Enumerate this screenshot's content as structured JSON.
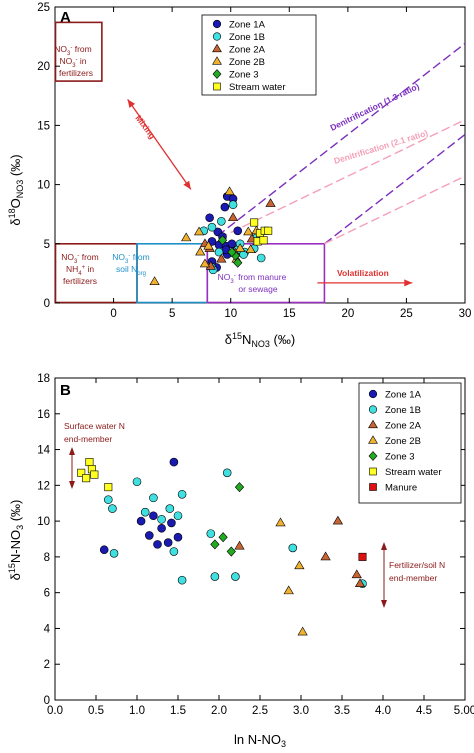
{
  "colors": {
    "zone_1a": "#1a1ab0",
    "zone_1b": "#40e0e0",
    "zone_2a": "#c86432",
    "zone_2b": "#f0b030",
    "zone_3": "#22aa22",
    "stream": "#ffff20",
    "manure": "#dd1111",
    "fert_box": "#8b1a1a",
    "soil_box": "#1e90c8",
    "manure_box": "#9b30c0",
    "denit13": "#7b2fbe",
    "denit21": "#f4a0b8",
    "arrow": "#e03030",
    "annot_b": "#8b1a1a"
  },
  "chart_data": [
    {
      "type": "scatter",
      "panel": "A",
      "ylabel_main": "δ",
      "ylabel_sup": "18",
      "ylabel_tail": "O",
      "ylabel_sub": "NO3",
      "ylabel_unit": " (‰)",
      "xlabel_main": "δ",
      "xlabel_sup": "15",
      "xlabel_tail": "N",
      "xlabel_sub": "NO3",
      "xlabel_unit": " (‰)",
      "xlim": [
        -5,
        30
      ],
      "ylim": [
        0,
        25
      ],
      "xticks": [
        0,
        5,
        10,
        15,
        20,
        25,
        30
      ],
      "xtick_labels": [
        "0",
        "5",
        "10",
        "15",
        "20",
        "25",
        "30"
      ],
      "yticks": [
        0,
        5,
        10,
        15,
        20,
        25
      ],
      "ytick_labels": [
        "0",
        "5",
        "10",
        "15",
        "20",
        "25"
      ],
      "legend": [
        "Zone 1A",
        "Zone 1B",
        "Zone 2A",
        "Zone 2B",
        "Zone 3",
        "Stream water"
      ],
      "series": [
        {
          "name": "Zone 1A",
          "marker": "circle",
          "color_key": "zone_1a",
          "points": [
            [
              9.7,
              9.0
            ],
            [
              10.2,
              8.8
            ],
            [
              9.5,
              8.1
            ],
            [
              8.2,
              7.2
            ],
            [
              8.4,
              5.2
            ],
            [
              9.0,
              4.9
            ],
            [
              9.6,
              4.8
            ],
            [
              9.7,
              4.1
            ],
            [
              10.3,
              4.4
            ],
            [
              8.9,
              6.0
            ],
            [
              9.3,
              5.6
            ],
            [
              8.8,
              3.0
            ],
            [
              9.6,
              4.5
            ],
            [
              10.6,
              6.1
            ],
            [
              10.1,
              5.0
            ],
            [
              8.4,
              3.5
            ]
          ]
        },
        {
          "name": "Zone 1B",
          "marker": "circle",
          "color_key": "zone_1b",
          "points": [
            [
              7.7,
              6.1
            ],
            [
              8.4,
              6.4
            ],
            [
              9.2,
              6.9
            ],
            [
              10.2,
              8.3
            ],
            [
              10.6,
              4.5
            ],
            [
              11.2,
              4.3
            ],
            [
              10.8,
              5.0
            ],
            [
              8.4,
              3.0
            ],
            [
              8.5,
              2.8
            ],
            [
              9.0,
              4.3
            ],
            [
              12.2,
              5.5
            ],
            [
              12.6,
              3.8
            ],
            [
              12.0,
              4.6
            ],
            [
              11.1,
              4.1
            ]
          ]
        },
        {
          "name": "Zone 2A",
          "marker": "triangle",
          "color_key": "zone_2a",
          "points": [
            [
              10.2,
              7.2
            ],
            [
              13.4,
              8.4
            ],
            [
              8.2,
              4.6
            ],
            [
              9.2,
              3.7
            ],
            [
              10.4,
              4.2
            ],
            [
              11.8,
              5.4
            ],
            [
              7.8,
              5.0
            ],
            [
              8.3,
              3.1
            ]
          ]
        },
        {
          "name": "Zone 2B",
          "marker": "triangle",
          "color_key": "zone_2b",
          "points": [
            [
              9.9,
              9.4
            ],
            [
              11.5,
              6.0
            ],
            [
              7.3,
              6.0
            ],
            [
              6.2,
              5.5
            ],
            [
              7.4,
              4.3
            ],
            [
              8.1,
              4.8
            ],
            [
              10.8,
              4.6
            ],
            [
              10.5,
              3.7
            ],
            [
              12.2,
              6.1
            ],
            [
              3.5,
              1.8
            ],
            [
              7.8,
              3.3
            ],
            [
              11.7,
              4.5
            ]
          ]
        },
        {
          "name": "Zone 3",
          "marker": "diamond",
          "color_key": "zone_3",
          "points": [
            [
              9.3,
              5.3
            ],
            [
              10.4,
              4.0
            ],
            [
              10.6,
              3.4
            ],
            [
              10.1,
              4.3
            ]
          ]
        },
        {
          "name": "Stream water",
          "marker": "square",
          "color_key": "stream",
          "points": [
            [
              12.0,
              6.8
            ],
            [
              12.5,
              5.9
            ],
            [
              12.9,
              6.1
            ],
            [
              12.3,
              5.2
            ],
            [
              13.2,
              6.1
            ],
            [
              12.8,
              5.3
            ]
          ]
        }
      ],
      "boxes": [
        {
          "x": [
            -5,
            -1
          ],
          "y": [
            18.7,
            23.7
          ],
          "color_key": "fert_box",
          "line1": "NO3- from",
          "line2": "NO3- in",
          "line3": "fertilizers"
        },
        {
          "x": [
            -5,
            2
          ],
          "y": [
            0,
            5
          ],
          "color_key": "fert_box",
          "line1": "NO3- from",
          "line2": "NH4+ in",
          "line3": "fertilizers"
        },
        {
          "x": [
            2,
            8
          ],
          "y": [
            0,
            5
          ],
          "color_key": "soil_box",
          "line1": "NO3- from",
          "line2": "soil N",
          "line3": "org"
        },
        {
          "x": [
            8,
            18
          ],
          "y": [
            0,
            5
          ],
          "color_key": "manure_box",
          "line1": "NO3- from manure",
          "line2": "or sewage",
          "line3": ""
        }
      ],
      "annotations": {
        "mixing": "Mixing",
        "volatilization": "Volatilization",
        "denit13": "Denitrification (1.3 ratio)",
        "denit21": "Denitrification (2.1 ratio)"
      }
    },
    {
      "type": "scatter",
      "panel": "B",
      "ylabel_main": "δ",
      "ylabel_sup": "15",
      "ylabel_tail": "N-NO",
      "ylabel_sub": "3",
      "ylabel_unit": " (‰)",
      "xlabel_main": "ln N-NO",
      "xlabel_sub": "3",
      "xlim": [
        0,
        5
      ],
      "ylim": [
        0,
        18
      ],
      "xticks": [
        0,
        0.5,
        1.0,
        1.5,
        2.0,
        2.5,
        3.0,
        3.5,
        4.0,
        4.5,
        5.0
      ],
      "xtick_labels": [
        "0.0",
        "0.5",
        "1.0",
        "1.5",
        "2.0",
        "2.5",
        "3.0",
        "3.5",
        "4.0",
        "4.5",
        "5.00"
      ],
      "yticks": [
        0,
        2,
        4,
        6,
        8,
        10,
        12,
        14,
        16,
        18
      ],
      "ytick_labels": [
        "0",
        "2",
        "4",
        "6",
        "8",
        "10",
        "12",
        "14",
        "16",
        "18"
      ],
      "legend": [
        "Zone 1A",
        "Zone 1B",
        "Zone 2A",
        "Zone 2B",
        "Zone 3",
        "Stream water",
        "Manure"
      ],
      "series": [
        {
          "name": "Zone 1A",
          "marker": "circle",
          "color_key": "zone_1a",
          "points": [
            [
              0.6,
              8.4
            ],
            [
              1.05,
              10.0
            ],
            [
              1.15,
              9.2
            ],
            [
              1.2,
              10.3
            ],
            [
              1.3,
              9.6
            ],
            [
              1.38,
              8.8
            ],
            [
              1.45,
              13.3
            ],
            [
              1.5,
              9.1
            ],
            [
              1.42,
              9.9
            ],
            [
              1.25,
              8.7
            ]
          ]
        },
        {
          "name": "Zone 1B",
          "marker": "circle",
          "color_key": "zone_1b",
          "points": [
            [
              0.65,
              11.2
            ],
            [
              0.7,
              10.7
            ],
            [
              0.72,
              8.2
            ],
            [
              1.0,
              12.2
            ],
            [
              1.1,
              10.5
            ],
            [
              1.2,
              11.3
            ],
            [
              1.3,
              10.1
            ],
            [
              1.4,
              10.7
            ],
            [
              1.5,
              10.3
            ],
            [
              1.55,
              11.5
            ],
            [
              1.55,
              6.7
            ],
            [
              1.45,
              8.3
            ],
            [
              1.9,
              9.3
            ],
            [
              1.95,
              6.9
            ],
            [
              2.1,
              12.7
            ],
            [
              2.2,
              6.9
            ],
            [
              2.9,
              8.5
            ],
            [
              3.75,
              6.5
            ]
          ]
        },
        {
          "name": "Zone 2A",
          "marker": "triangle",
          "color_key": "zone_2a",
          "points": [
            [
              2.25,
              8.6
            ],
            [
              3.3,
              8.0
            ],
            [
              3.45,
              10.0
            ],
            [
              3.68,
              7.0
            ],
            [
              3.72,
              6.5
            ]
          ]
        },
        {
          "name": "Zone 2B",
          "marker": "triangle",
          "color_key": "zone_2b",
          "points": [
            [
              2.75,
              9.9
            ],
            [
              2.85,
              6.1
            ],
            [
              2.98,
              7.5
            ],
            [
              3.02,
              3.8
            ]
          ]
        },
        {
          "name": "Zone 3",
          "marker": "diamond",
          "color_key": "zone_3",
          "points": [
            [
              1.95,
              8.7
            ],
            [
              2.05,
              9.1
            ],
            [
              2.15,
              8.3
            ],
            [
              2.25,
              11.9
            ]
          ]
        },
        {
          "name": "Stream water",
          "marker": "square",
          "color_key": "stream",
          "points": [
            [
              0.32,
              12.7
            ],
            [
              0.38,
              12.4
            ],
            [
              0.42,
              13.3
            ],
            [
              0.45,
              12.9
            ],
            [
              0.48,
              12.6
            ],
            [
              0.65,
              11.9
            ]
          ]
        },
        {
          "name": "Manure",
          "marker": "square",
          "color_key": "manure",
          "points": [
            [
              3.75,
              8.0
            ]
          ]
        }
      ],
      "annotations": {
        "surface_line1": "Surface water N",
        "surface_line2": "end-member",
        "fert_line1": "Fertilizer/soil N",
        "fert_line2": "end-member"
      }
    }
  ]
}
